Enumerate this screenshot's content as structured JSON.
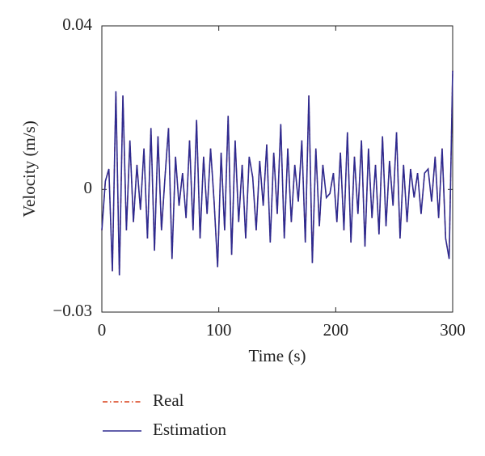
{
  "chart_data": {
    "type": "line",
    "xlabel": "Time (s)",
    "ylabel": "Velocity (m/s)",
    "x": [
      0,
      3,
      6,
      9,
      12,
      15,
      18,
      21,
      24,
      27,
      30,
      33,
      36,
      39,
      42,
      45,
      48,
      51,
      54,
      57,
      60,
      63,
      66,
      69,
      72,
      75,
      78,
      81,
      84,
      87,
      90,
      93,
      96,
      99,
      102,
      105,
      108,
      111,
      114,
      117,
      120,
      123,
      126,
      129,
      132,
      135,
      138,
      141,
      144,
      147,
      150,
      153,
      156,
      159,
      162,
      165,
      168,
      171,
      174,
      177,
      180,
      183,
      186,
      189,
      192,
      195,
      198,
      201,
      204,
      207,
      210,
      213,
      216,
      219,
      222,
      225,
      228,
      231,
      234,
      237,
      240,
      243,
      246,
      249,
      252,
      255,
      258,
      261,
      264,
      267,
      270,
      273,
      276,
      279,
      282,
      285,
      288,
      291,
      294,
      297,
      300
    ],
    "series": [
      {
        "name": "Real",
        "color": "#d9401a",
        "style": "dashdot",
        "values": [
          -0.01,
          0.002,
          0.005,
          -0.02,
          0.024,
          -0.021,
          0.023,
          -0.01,
          0.012,
          -0.008,
          0.006,
          -0.005,
          0.01,
          -0.012,
          0.015,
          -0.015,
          0.013,
          -0.01,
          0.003,
          0.015,
          -0.017,
          0.008,
          -0.004,
          0.004,
          -0.007,
          0.012,
          -0.01,
          0.017,
          -0.012,
          0.008,
          -0.006,
          0.01,
          -0.003,
          -0.019,
          0.009,
          -0.01,
          0.018,
          -0.016,
          0.012,
          -0.008,
          0.006,
          -0.012,
          0.008,
          0.003,
          -0.01,
          0.007,
          -0.004,
          0.011,
          -0.013,
          0.009,
          -0.006,
          0.016,
          -0.012,
          0.01,
          -0.008,
          0.006,
          -0.003,
          0.012,
          -0.013,
          0.023,
          -0.018,
          0.01,
          -0.009,
          0.006,
          -0.002,
          -0.001,
          0.004,
          -0.008,
          0.009,
          -0.01,
          0.014,
          -0.013,
          0.008,
          -0.006,
          0.012,
          -0.014,
          0.01,
          -0.007,
          0.006,
          -0.011,
          0.013,
          -0.009,
          0.007,
          -0.004,
          0.014,
          -0.012,
          0.006,
          -0.008,
          0.005,
          -0.002,
          0.004,
          -0.006,
          0.004,
          0.005,
          -0.003,
          0.008,
          -0.007,
          0.01,
          -0.012,
          -0.017,
          0.029
        ]
      },
      {
        "name": "Estimation",
        "color": "#2e2a8f",
        "style": "solid",
        "values": [
          -0.01,
          0.002,
          0.005,
          -0.02,
          0.024,
          -0.021,
          0.023,
          -0.01,
          0.012,
          -0.008,
          0.006,
          -0.005,
          0.01,
          -0.012,
          0.015,
          -0.015,
          0.013,
          -0.01,
          0.003,
          0.015,
          -0.017,
          0.008,
          -0.004,
          0.004,
          -0.007,
          0.012,
          -0.01,
          0.017,
          -0.012,
          0.008,
          -0.006,
          0.01,
          -0.003,
          -0.019,
          0.009,
          -0.01,
          0.018,
          -0.016,
          0.012,
          -0.008,
          0.006,
          -0.012,
          0.008,
          0.003,
          -0.01,
          0.007,
          -0.004,
          0.011,
          -0.013,
          0.009,
          -0.006,
          0.016,
          -0.012,
          0.01,
          -0.008,
          0.006,
          -0.003,
          0.012,
          -0.013,
          0.023,
          -0.018,
          0.01,
          -0.009,
          0.006,
          -0.002,
          -0.001,
          0.004,
          -0.008,
          0.009,
          -0.01,
          0.014,
          -0.013,
          0.008,
          -0.006,
          0.012,
          -0.014,
          0.01,
          -0.007,
          0.006,
          -0.011,
          0.013,
          -0.009,
          0.007,
          -0.004,
          0.014,
          -0.012,
          0.006,
          -0.008,
          0.005,
          -0.002,
          0.004,
          -0.006,
          0.004,
          0.005,
          -0.003,
          0.008,
          -0.007,
          0.01,
          -0.012,
          -0.017,
          0.029
        ]
      }
    ],
    "xlim": [
      0,
      300
    ],
    "xticks": [
      0,
      100,
      200,
      300
    ],
    "ylim": [
      -0.03,
      0.04
    ],
    "yticks": [
      {
        "value": -0.03,
        "label": "−0.03"
      },
      0,
      0.04
    ],
    "grid": false,
    "legend": "bottom"
  }
}
